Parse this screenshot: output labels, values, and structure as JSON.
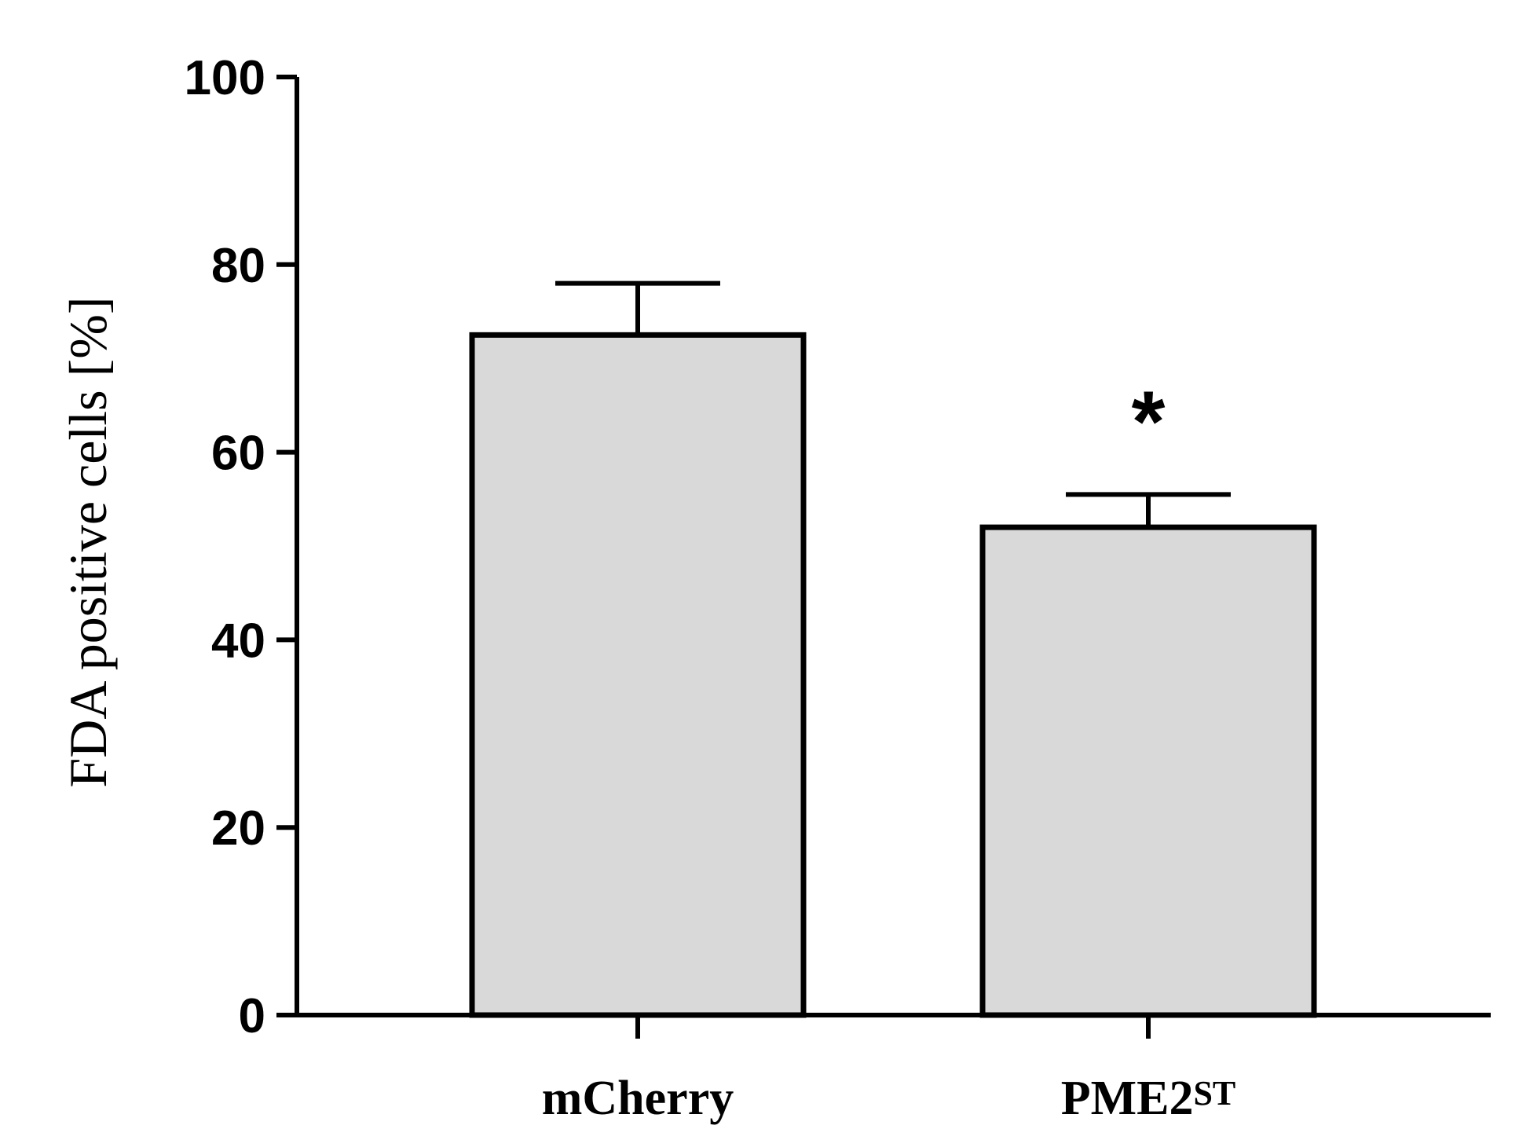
{
  "chart_data": {
    "type": "bar",
    "title": "",
    "xlabel": "",
    "ylabel": "FDA positive cells [%]",
    "ylim": [
      0,
      100
    ],
    "yticks": [
      "0",
      "20",
      "40",
      "60",
      "80",
      "100"
    ],
    "categories": [
      {
        "label": "mCherry",
        "superscript": ""
      },
      {
        "label": "PME2",
        "superscript": "ST"
      }
    ],
    "values": [
      72.5,
      52
    ],
    "error_upper": [
      78,
      55.5
    ],
    "annotations": [
      "",
      "*"
    ],
    "grid": false,
    "legend": "none",
    "colors": {
      "bar_fill": "#d9d9d9",
      "bar_stroke": "#000000",
      "axis": "#000000"
    }
  }
}
